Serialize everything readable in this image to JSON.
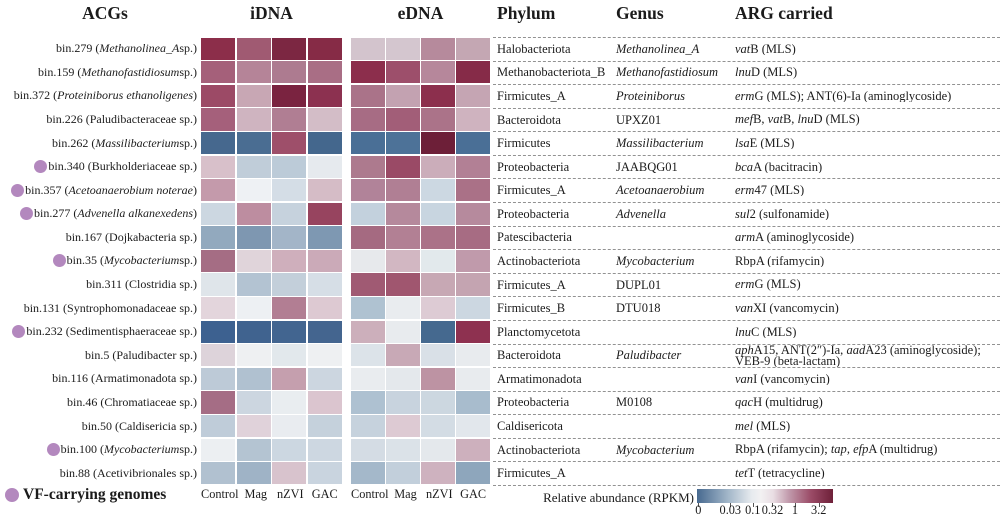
{
  "header": {
    "acgs": "ACGs",
    "idna": "iDNA",
    "edna": "eDNA",
    "phylum": "Phylum",
    "genus": "Genus",
    "arg": "ARG carried"
  },
  "footer": {
    "vf_label": "VF-carrying genomes"
  },
  "colors": {
    "vf_dot": "#b388be",
    "dash": "#929292"
  },
  "legend": {
    "title": "Relative abundance (RPKM)",
    "ticks": [
      {
        "label": "0",
        "pos": 1
      },
      {
        "label": "0.03",
        "pos": 24.5
      },
      {
        "label": "0.1",
        "pos": 41
      },
      {
        "label": "0.32",
        "pos": 55.5
      },
      {
        "label": "1",
        "pos": 72
      },
      {
        "label": "3.2",
        "pos": 89.5
      }
    ],
    "gradient": [
      {
        "c": "#47698f",
        "p": 0
      },
      {
        "c": "#9fb4c7",
        "p": 22
      },
      {
        "c": "#e6eaee",
        "p": 40
      },
      {
        "c": "#f2f1f2",
        "p": 47
      },
      {
        "c": "#e9dde3",
        "p": 56
      },
      {
        "c": "#c098aa",
        "p": 68
      },
      {
        "c": "#9a4a66",
        "p": 84
      },
      {
        "c": "#6e2039",
        "p": 100
      }
    ]
  },
  "chart_data": {
    "type": "heatmap",
    "panels": [
      "iDNA",
      "eDNA"
    ],
    "columns": [
      "Control",
      "Mag",
      "nZVI",
      "GAC"
    ],
    "colorbar": {
      "label": "Relative abundance (RPKM)",
      "tick_labels": [
        "0",
        "0.03",
        "0.1",
        "0.32",
        "1",
        "3.2"
      ],
      "low_color": "#47698f",
      "mid_color": "#f1f1f2",
      "high_color": "#6e2039",
      "note": "cell values encoded as colors on a log-like scale from 0 (blue) to 3.2 (dark red)"
    },
    "rows": [
      {
        "bin": "bin.279",
        "vf": false,
        "label": [
          [
            "bin.279 (",
            0
          ],
          [
            "Methanolinea_A",
            1
          ],
          [
            " sp.)",
            0
          ]
        ],
        "idna": [
          "#8c2e4a",
          "#a05a72",
          "#7c2742",
          "#862b46"
        ],
        "edna": [
          "#d3c4cd",
          "#d4c6cf",
          "#b68a9c",
          "#c4a7b3"
        ],
        "phylum": "Halobacteriota",
        "genus": [
          "Methanolinea_A",
          1
        ],
        "arg": [
          [
            [
              "vat",
              1
            ],
            [
              "B (MLS)",
              0
            ]
          ]
        ]
      },
      {
        "bin": "bin.159",
        "vf": false,
        "label": [
          [
            "bin.159 (",
            0
          ],
          [
            "Methanofastidiosum",
            1
          ],
          [
            " sp.)",
            0
          ]
        ],
        "idna": [
          "#a5607a",
          "#b58498",
          "#ad7b90",
          "#a96e85"
        ],
        "edna": [
          "#8c2e4c",
          "#9d4f6b",
          "#b6879b",
          "#862b48"
        ],
        "phylum": "Methanobacteriota_B",
        "genus": [
          "Methanofastidiosum",
          1
        ],
        "arg": [
          [
            [
              "lnu",
              1
            ],
            [
              "D (MLS)",
              0
            ]
          ]
        ]
      },
      {
        "bin": "bin.372",
        "vf": false,
        "label": [
          [
            "bin.372 (",
            0
          ],
          [
            "Proteiniborus ethanoligenes",
            1
          ],
          [
            ")",
            0
          ]
        ],
        "idna": [
          "#9c4a66",
          "#c8a7b4",
          "#7a2340",
          "#8c3150"
        ],
        "edna": [
          "#aa7389",
          "#c3a2b1",
          "#8c2f4d",
          "#c5a5b3"
        ],
        "phylum": "Firmicutes_A",
        "genus": [
          "Proteiniborus",
          1
        ],
        "arg": [
          [
            [
              "erm",
              1
            ],
            [
              "G (MLS); ANT(6)-Ia (aminoglycoside)",
              0
            ]
          ]
        ]
      },
      {
        "bin": "bin.226",
        "vf": false,
        "label": [
          [
            "bin.226 (Paludibacteraceae sp.)",
            0
          ]
        ],
        "idna": [
          "#a5607b",
          "#cfb4c0",
          "#b07e93",
          "#d3bdc7"
        ],
        "edna": [
          "#a76c84",
          "#a25e78",
          "#ab7389",
          "#cfb3bf"
        ],
        "phylum": "Bacteroidota",
        "genus": [
          "UPXZ01",
          0
        ],
        "arg": [
          [
            [
              "mef",
              1
            ],
            [
              "B, ",
              0
            ],
            [
              "vat",
              1
            ],
            [
              "B, ",
              0
            ],
            [
              "lnu",
              1
            ],
            [
              "D (MLS)",
              0
            ]
          ]
        ]
      },
      {
        "bin": "bin.262",
        "vf": false,
        "label": [
          [
            "bin.262 (",
            0
          ],
          [
            "Massilibacterium",
            1
          ],
          [
            " sp.)",
            0
          ]
        ],
        "idna": [
          "#46688e",
          "#4a6d92",
          "#9e4f6a",
          "#44678d"
        ],
        "edna": [
          "#4a6f96",
          "#4d7298",
          "#6d1f38",
          "#4a6f96"
        ],
        "phylum": "Firmicutes",
        "genus": [
          "Massilibacterium",
          1
        ],
        "arg": [
          [
            [
              "lsa",
              1
            ],
            [
              "E (MLS)",
              0
            ]
          ]
        ]
      },
      {
        "bin": "bin.340",
        "vf": true,
        "label": [
          [
            "bin.340 (Burkholderiaceae sp.)",
            0
          ]
        ],
        "idna": [
          "#d8c0ca",
          "#c0cdd9",
          "#bccbd8",
          "#e6eaee"
        ],
        "edna": [
          "#ad7a8e",
          "#9a4a66",
          "#cbadba",
          "#b28095"
        ],
        "phylum": "Proteobacteria",
        "genus": [
          "JAABQG01",
          0
        ],
        "arg": [
          [
            [
              "bca",
              1
            ],
            [
              "A (bacitracin)",
              0
            ]
          ]
        ]
      },
      {
        "bin": "bin.357",
        "vf": true,
        "label": [
          [
            "bin.357 (",
            0
          ],
          [
            "Acetoanaerobium noterae",
            1
          ],
          [
            ")",
            0
          ]
        ],
        "idna": [
          "#c49aab",
          "#eef1f4",
          "#d4dde6",
          "#d5bcc6"
        ],
        "edna": [
          "#b18399",
          "#b07f94",
          "#ccd8e2",
          "#aa7187"
        ],
        "phylum": "Firmicutes_A",
        "genus": [
          "Acetoanaerobium",
          1
        ],
        "arg": [
          [
            [
              "erm",
              1
            ],
            [
              "47 (MLS)",
              0
            ]
          ]
        ]
      },
      {
        "bin": "bin.277",
        "vf": true,
        "label": [
          [
            "bin.277 (",
            0
          ],
          [
            "Advenella alkanexedens",
            1
          ],
          [
            ")",
            0
          ]
        ],
        "idna": [
          "#ccd7e1",
          "#bd8da0",
          "#c6d2dd",
          "#97445f"
        ],
        "edna": [
          "#c3d1dd",
          "#b5899c",
          "#c8d5e0",
          "#b68a9d"
        ],
        "phylum": "Proteobacteria",
        "genus": [
          "Advenella",
          1
        ],
        "arg": [
          [
            [
              "sul",
              1
            ],
            [
              "2 (sulfonamide)",
              0
            ]
          ]
        ]
      },
      {
        "bin": "bin.167",
        "vf": false,
        "label": [
          [
            "bin.167 (Dojkabacteria sp.)",
            0
          ]
        ],
        "idna": [
          "#92a9be",
          "#7e97b1",
          "#a3b5c8",
          "#7e98b2"
        ],
        "edna": [
          "#a56a81",
          "#b28094",
          "#ab7288",
          "#a76c83"
        ],
        "phylum": "Patescibacteria",
        "genus": null,
        "arg": [
          [
            [
              "arm",
              1
            ],
            [
              "A (aminoglycoside)",
              0
            ]
          ]
        ]
      },
      {
        "bin": "bin.35",
        "vf": true,
        "label": [
          [
            "bin.35 (",
            0
          ],
          [
            "Mycobacterium",
            1
          ],
          [
            " sp.)",
            0
          ]
        ],
        "idna": [
          "#a56d84",
          "#e0d4da",
          "#cfafbc",
          "#cbaab8"
        ],
        "edna": [
          "#e7e9ec",
          "#d2b7c2",
          "#e2e9ec",
          "#c09aab"
        ],
        "phylum": "Actinobacteriota",
        "genus": [
          "Mycobacterium",
          1
        ],
        "arg": [
          [
            [
              "RbpA (rifamycin)",
              0
            ]
          ]
        ]
      },
      {
        "bin": "bin.311",
        "vf": false,
        "label": [
          [
            "bin.311 (Clostridia sp.)",
            0
          ]
        ],
        "idna": [
          "#dfe5ea",
          "#b3c3d2",
          "#c3cfda",
          "#d6dee6"
        ],
        "edna": [
          "#a05a73",
          "#a0566f",
          "#c7a8b4",
          "#c4a4b1"
        ],
        "phylum": "Firmicutes_A",
        "genus": [
          "DUPL01",
          0
        ],
        "arg": [
          [
            [
              "erm",
              1
            ],
            [
              "G (MLS)",
              0
            ]
          ]
        ]
      },
      {
        "bin": "bin.131",
        "vf": false,
        "label": [
          [
            "bin.131 (Syntrophomonadaceae sp.)",
            0
          ]
        ],
        "idna": [
          "#e3d5dc",
          "#edf0f3",
          "#b27e93",
          "#ddc9d2"
        ],
        "edna": [
          "#afc2d1",
          "#e9ecef",
          "#ddcbd4",
          "#ccd7e1"
        ],
        "phylum": "Firmicutes_B",
        "genus": [
          "DTU018",
          0
        ],
        "arg": [
          [
            [
              "van",
              1
            ],
            [
              "XI (vancomycin)",
              0
            ]
          ]
        ]
      },
      {
        "bin": "bin.232",
        "vf": true,
        "label": [
          [
            "bin.232 (Sedimentisphaeraceae sp.)",
            0
          ]
        ],
        "idna": [
          "#3d6190",
          "#40638f",
          "#426590",
          "#44658f"
        ],
        "edna": [
          "#ccafbb",
          "#e8ebee",
          "#45698f",
          "#8e3150"
        ],
        "phylum": "Planctomycetota",
        "genus": null,
        "arg": [
          [
            [
              "lnu",
              1
            ],
            [
              "C (MLS)",
              0
            ]
          ]
        ]
      },
      {
        "bin": "bin.5",
        "vf": false,
        "label": [
          [
            "bin.5 (Paludibacter sp.)",
            0
          ]
        ],
        "idna": [
          "#ddd3da",
          "#eef0f2",
          "#e2e8ec",
          "#eef0f2"
        ],
        "edna": [
          "#dce3e9",
          "#c8a9b6",
          "#d9e0e7",
          "#e8ebee"
        ],
        "phylum": "Bacteroidota",
        "genus": [
          "Paludibacter",
          1
        ],
        "arg": [
          [
            [
              "aph",
              1
            ],
            [
              "A15, ANT(2″)-Ia, ",
              0
            ],
            [
              "aad",
              1
            ],
            [
              "A23 (aminoglycoside);",
              0
            ]
          ],
          [
            [
              "VEB-9 (beta-lactam)",
              0
            ]
          ]
        ]
      },
      {
        "bin": "bin.116",
        "vf": false,
        "label": [
          [
            "bin.116 (Armatimonadota sp.)",
            0
          ]
        ],
        "idna": [
          "#bdcad7",
          "#b0c1d0",
          "#c59fae",
          "#ccd6e0"
        ],
        "edna": [
          "#e9ecef",
          "#e4e8ec",
          "#bd93a3",
          "#e8ebee"
        ],
        "phylum": "Armatimonadota",
        "genus": null,
        "arg": [
          [
            [
              "van",
              1
            ],
            [
              "I (vancomycin)",
              0
            ]
          ]
        ]
      },
      {
        "bin": "bin.46",
        "vf": false,
        "label": [
          [
            "bin.46 (Chromatiaceae sp.)",
            0
          ]
        ],
        "idna": [
          "#a56d85",
          "#ccd6e0",
          "#e9edf0",
          "#dbc5cf"
        ],
        "edna": [
          "#aec1d1",
          "#c8d3de",
          "#ccd7e0",
          "#a8bccd"
        ],
        "phylum": "Proteobacteria",
        "genus": [
          "M0108",
          0
        ],
        "arg": [
          [
            [
              "qac",
              1
            ],
            [
              "H (multidrug)",
              0
            ]
          ]
        ]
      },
      {
        "bin": "bin.50",
        "vf": false,
        "label": [
          [
            "bin.50 (Caldisericia sp.)",
            0
          ]
        ],
        "idna": [
          "#bfccd9",
          "#e0d2da",
          "#e9ecf0",
          "#c5d1dc"
        ],
        "edna": [
          "#c6d2dd",
          "#ddcad3",
          "#d3dce4",
          "#e2e7ec"
        ],
        "phylum": "Caldisericota",
        "genus": null,
        "arg": [
          [
            [
              "mel",
              1
            ],
            [
              " (MLS)",
              0
            ]
          ]
        ]
      },
      {
        "bin": "bin.100",
        "vf": true,
        "label": [
          [
            "bin.100 (",
            0
          ],
          [
            "Mycobacterium",
            1
          ],
          [
            " sp.)",
            0
          ]
        ],
        "idna": [
          "#eceff2",
          "#b4c4d2",
          "#ccd7e1",
          "#cdd7e1"
        ],
        "edna": [
          "#d4dce4",
          "#dbe2e8",
          "#e4e8ec",
          "#cdb0bd"
        ],
        "phylum": "Actinobacteriota",
        "genus": [
          "Mycobacterium",
          1
        ],
        "arg": [
          [
            [
              "RbpA (rifamycin); ",
              0
            ],
            [
              "tap",
              1
            ],
            [
              ", ",
              0
            ],
            [
              "efp",
              1
            ],
            [
              "A (multidrug)",
              0
            ]
          ]
        ]
      },
      {
        "bin": "bin.88",
        "vf": false,
        "label": [
          [
            "bin.88 (Acetivibrionales sp.)",
            0
          ]
        ],
        "idna": [
          "#b1c1d0",
          "#9fb3c6",
          "#d8c3cd",
          "#c9d4df"
        ],
        "edna": [
          "#a4b8ca",
          "#c2cfdb",
          "#ceb2bf",
          "#8ea6bc"
        ],
        "phylum": "Firmicutes_A",
        "genus": null,
        "arg": [
          [
            [
              "tet",
              1
            ],
            [
              "T (tetracycline)",
              0
            ]
          ]
        ]
      }
    ]
  }
}
